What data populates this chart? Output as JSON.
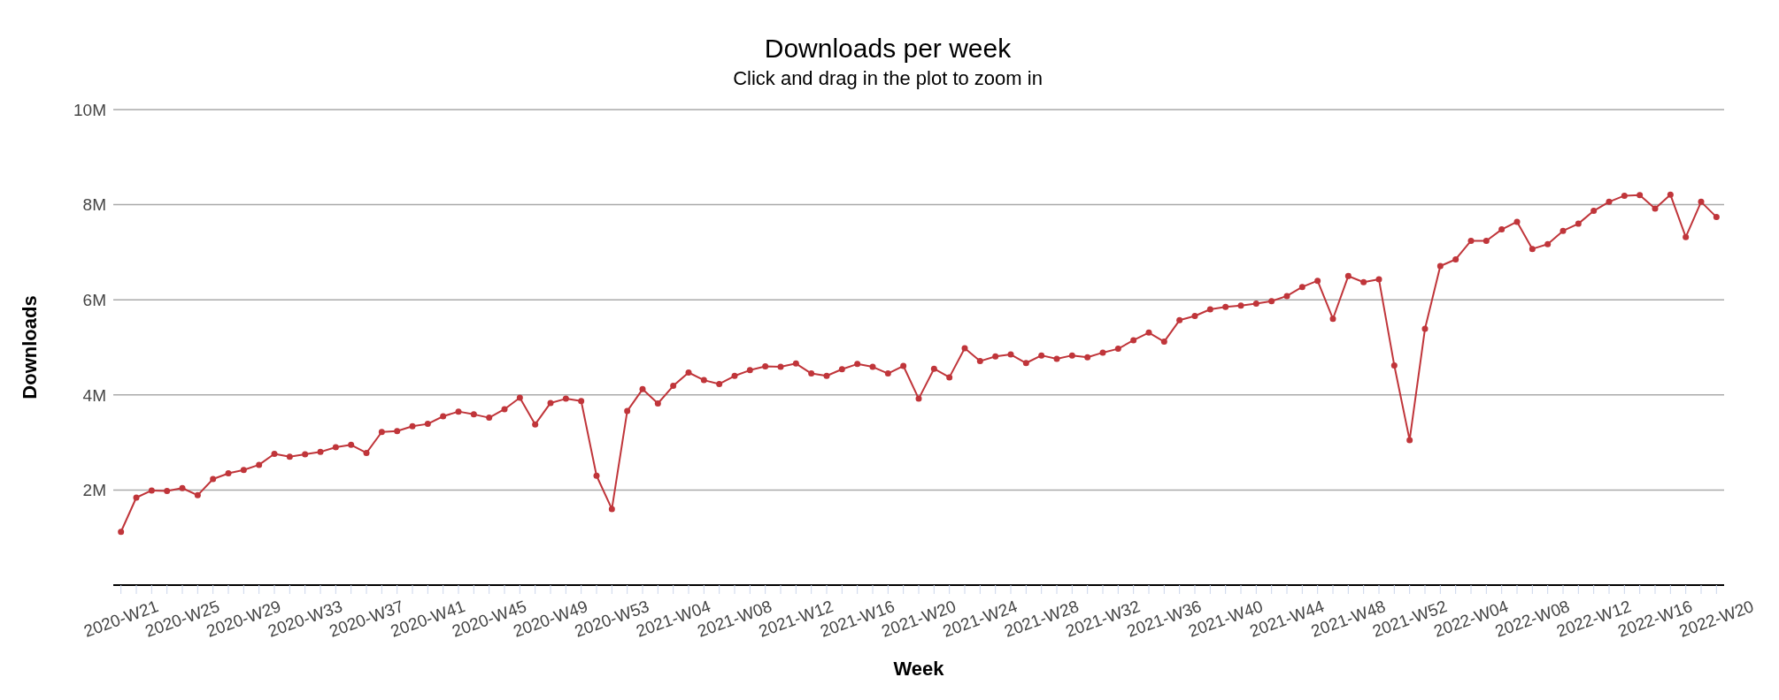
{
  "chart_data": {
    "type": "line",
    "title": "Downloads per week",
    "subtitle": "Click and drag in the plot to zoom in",
    "xlabel": "Week",
    "ylabel": "Downloads",
    "categories": [
      "2020-W21",
      null,
      null,
      null,
      "2020-W25",
      null,
      null,
      null,
      "2020-W29",
      null,
      null,
      null,
      "2020-W33",
      null,
      null,
      null,
      "2020-W37",
      null,
      null,
      null,
      "2020-W41",
      null,
      null,
      null,
      "2020-W45",
      null,
      null,
      null,
      "2020-W49",
      null,
      null,
      null,
      "2020-W53",
      null,
      null,
      null,
      "2021-W04",
      null,
      null,
      null,
      "2021-W08",
      null,
      null,
      null,
      "2021-W12",
      null,
      null,
      null,
      "2021-W16",
      null,
      null,
      null,
      "2021-W20",
      null,
      null,
      null,
      "2021-W24",
      null,
      null,
      null,
      "2021-W28",
      null,
      null,
      null,
      "2021-W32",
      null,
      null,
      null,
      "2021-W36",
      null,
      null,
      null,
      "2021-W40",
      null,
      null,
      null,
      "2021-W44",
      null,
      null,
      null,
      "2021-W48",
      null,
      null,
      null,
      "2021-W52",
      null,
      null,
      null,
      "2022-W04",
      null,
      null,
      null,
      "2022-W08",
      null,
      null,
      null,
      "2022-W12",
      null,
      null,
      null,
      "2022-W16",
      null,
      null,
      null,
      "2022-W20"
    ],
    "values": [
      1120000,
      1840000,
      1990000,
      1980000,
      2040000,
      1890000,
      2230000,
      2350000,
      2420000,
      2530000,
      2760000,
      2700000,
      2750000,
      2800000,
      2900000,
      2950000,
      2780000,
      3220000,
      3240000,
      3340000,
      3390000,
      3550000,
      3650000,
      3590000,
      3520000,
      3700000,
      3940000,
      3380000,
      3830000,
      3920000,
      3870000,
      2300000,
      1600000,
      3660000,
      4120000,
      3820000,
      4190000,
      4470000,
      4310000,
      4230000,
      4400000,
      4520000,
      4600000,
      4590000,
      4660000,
      4450000,
      4400000,
      4540000,
      4650000,
      4590000,
      4450000,
      4610000,
      3920000,
      4550000,
      4370000,
      4980000,
      4710000,
      4810000,
      4850000,
      4670000,
      4830000,
      4760000,
      4830000,
      4790000,
      4890000,
      4970000,
      5150000,
      5310000,
      5120000,
      5570000,
      5660000,
      5800000,
      5850000,
      5880000,
      5920000,
      5970000,
      6080000,
      6270000,
      6400000,
      5600000,
      6500000,
      6370000,
      6430000,
      4620000,
      3050000,
      5390000,
      6710000,
      6850000,
      7240000,
      7240000,
      7480000,
      7640000,
      7070000,
      7170000,
      7450000,
      7600000,
      7870000,
      8060000,
      8190000,
      8200000,
      7920000,
      8210000,
      7320000,
      8060000,
      7740000
    ],
    "color": "#c0353a",
    "marker": "circle",
    "grid": "y",
    "ylim": [
      0,
      10000000
    ],
    "yticks": [
      {
        "value": 2000000,
        "label": "2M"
      },
      {
        "value": 4000000,
        "label": "4M"
      },
      {
        "value": 6000000,
        "label": "6M"
      },
      {
        "value": 8000000,
        "label": "8M"
      },
      {
        "value": 10000000,
        "label": "10M"
      }
    ]
  }
}
